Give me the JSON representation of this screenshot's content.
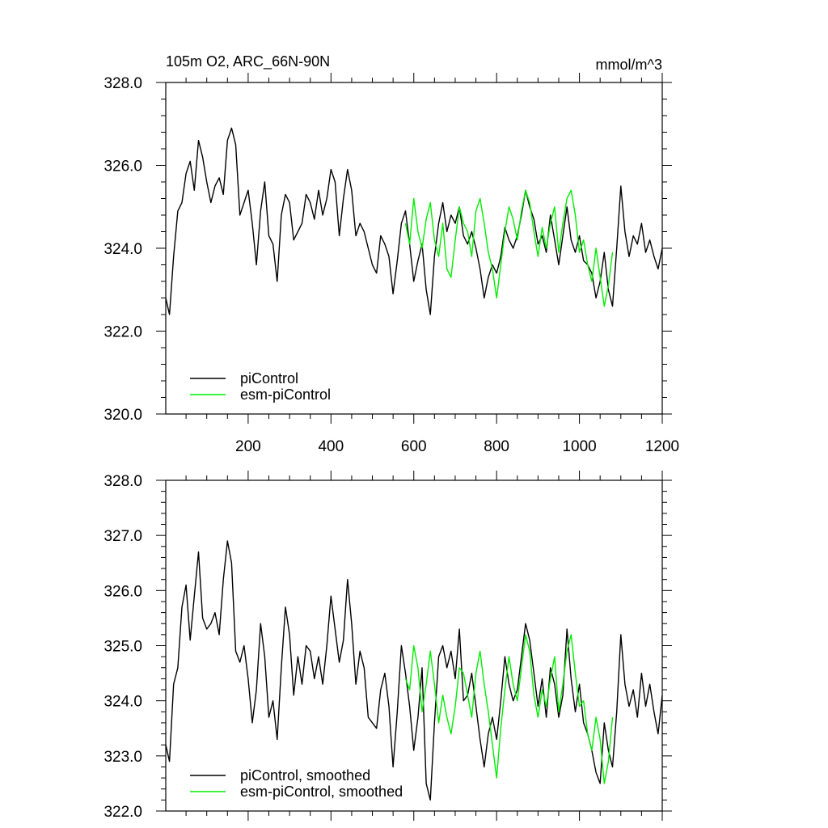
{
  "chart_data": [
    {
      "type": "line",
      "title": "105m O2, ARC_66N-90N",
      "units": "mmol/m^3",
      "xlim": [
        1,
        1200
      ],
      "ylim": [
        320,
        328
      ],
      "xticks": [
        200,
        400,
        600,
        800,
        1000,
        1200
      ],
      "xtick_labels": [
        "200",
        "400",
        "600",
        "800",
        "1000",
        "1200"
      ],
      "yticks": [
        320,
        322,
        324,
        326,
        328
      ],
      "ytick_labels": [
        "320.0",
        "322.0",
        "324.0",
        "326.0",
        "328.0"
      ],
      "legend_position": "bottom-left",
      "grid": false,
      "series": [
        {
          "name": "piControl",
          "color": "#000000",
          "x": [
            1,
            10,
            20,
            30,
            40,
            50,
            60,
            70,
            80,
            90,
            100,
            110,
            120,
            130,
            140,
            150,
            160,
            170,
            180,
            190,
            200,
            210,
            220,
            230,
            240,
            250,
            260,
            270,
            280,
            290,
            300,
            310,
            320,
            330,
            340,
            350,
            360,
            370,
            380,
            390,
            400,
            410,
            420,
            430,
            440,
            450,
            460,
            470,
            480,
            490,
            500,
            510,
            520,
            530,
            540,
            550,
            560,
            570,
            580,
            590,
            600,
            610,
            620,
            630,
            640,
            650,
            660,
            670,
            680,
            690,
            700,
            710,
            720,
            730,
            740,
            750,
            760,
            770,
            780,
            790,
            800,
            810,
            820,
            830,
            840,
            850,
            860,
            870,
            880,
            890,
            900,
            910,
            920,
            930,
            940,
            950,
            960,
            970,
            980,
            990,
            1000,
            1010,
            1020,
            1030,
            1040,
            1050,
            1060,
            1070,
            1080,
            1090,
            1100,
            1110,
            1120,
            1130,
            1140,
            1150,
            1160,
            1170,
            1180,
            1190,
            1200
          ],
          "values": [
            322.8,
            322.4,
            323.8,
            324.9,
            325.1,
            325.8,
            326.1,
            325.4,
            326.6,
            326.2,
            325.6,
            325.1,
            325.5,
            325.7,
            325.3,
            326.6,
            326.9,
            326.5,
            324.8,
            325.1,
            325.4,
            324.6,
            323.6,
            324.9,
            325.6,
            324.3,
            324.1,
            323.2,
            324.8,
            325.3,
            325.1,
            324.2,
            324.4,
            324.6,
            325.3,
            325.1,
            324.7,
            325.4,
            324.8,
            325.2,
            325.9,
            325.6,
            324.3,
            325.2,
            325.9,
            325.4,
            324.3,
            324.6,
            324.4,
            324.0,
            323.6,
            323.4,
            324.3,
            324.1,
            323.8,
            322.9,
            323.7,
            324.6,
            324.9,
            324.1,
            323.2,
            323.7,
            324.1,
            323.0,
            322.4,
            323.8,
            324.6,
            325.1,
            324.4,
            324.8,
            324.6,
            325.0,
            324.3,
            324.1,
            324.4,
            324.0,
            323.5,
            322.8,
            323.3,
            323.6,
            323.4,
            323.8,
            324.5,
            324.2,
            324.0,
            324.3,
            324.8,
            325.4,
            325.0,
            324.7,
            324.1,
            324.3,
            323.9,
            324.8,
            324.2,
            323.6,
            324.3,
            325.0,
            324.2,
            323.9,
            324.3,
            323.7,
            323.6,
            323.4,
            322.8,
            323.2,
            323.9,
            323.0,
            322.6,
            324.0,
            325.5,
            324.4,
            323.8,
            324.3,
            324.1,
            324.6,
            323.9,
            324.2,
            323.8,
            323.5,
            324.0
          ]
        },
        {
          "name": "esm-piControl",
          "color": "#00ee00",
          "x": [
            580,
            590,
            600,
            610,
            620,
            630,
            640,
            650,
            660,
            670,
            680,
            690,
            700,
            710,
            720,
            730,
            740,
            750,
            760,
            770,
            780,
            790,
            800,
            810,
            820,
            830,
            840,
            850,
            860,
            870,
            880,
            890,
            900,
            910,
            920,
            930,
            940,
            950,
            960,
            970,
            980,
            990,
            1000,
            1010,
            1020,
            1030,
            1040,
            1050,
            1060,
            1070,
            1080
          ],
          "values": [
            324.6,
            324.1,
            325.2,
            324.4,
            324.0,
            324.7,
            325.1,
            324.2,
            323.8,
            324.6,
            323.5,
            323.3,
            324.2,
            325.0,
            324.6,
            324.4,
            323.8,
            324.9,
            325.2,
            324.6,
            323.9,
            323.5,
            322.8,
            323.6,
            324.4,
            325.0,
            324.7,
            324.2,
            324.9,
            325.4,
            325.1,
            324.4,
            323.8,
            324.5,
            324.0,
            324.6,
            325.0,
            323.9,
            324.6,
            325.2,
            325.4,
            324.8,
            323.9,
            324.2,
            323.6,
            323.2,
            324.0,
            323.3,
            322.6,
            323.1,
            323.9
          ]
        }
      ]
    },
    {
      "type": "line",
      "xlim": [
        1,
        1200
      ],
      "ylim": [
        322,
        328
      ],
      "yticks": [
        322,
        323,
        324,
        325,
        326,
        327,
        328
      ],
      "ytick_labels": [
        "322.0",
        "323.0",
        "324.0",
        "325.0",
        "326.0",
        "327.0",
        "328.0"
      ],
      "legend_position": "bottom-left",
      "grid": false,
      "series": [
        {
          "name": "piControl, smoothed",
          "color": "#000000",
          "x": [
            1,
            10,
            20,
            30,
            40,
            50,
            60,
            70,
            80,
            90,
            100,
            110,
            120,
            130,
            140,
            150,
            160,
            170,
            180,
            190,
            200,
            210,
            220,
            230,
            240,
            250,
            260,
            270,
            280,
            290,
            300,
            310,
            320,
            330,
            340,
            350,
            360,
            370,
            380,
            390,
            400,
            410,
            420,
            430,
            440,
            450,
            460,
            470,
            480,
            490,
            500,
            510,
            520,
            530,
            540,
            550,
            560,
            570,
            580,
            590,
            600,
            610,
            620,
            630,
            640,
            650,
            660,
            670,
            680,
            690,
            700,
            710,
            720,
            730,
            740,
            750,
            760,
            770,
            780,
            790,
            800,
            810,
            820,
            830,
            840,
            850,
            860,
            870,
            880,
            890,
            900,
            910,
            920,
            930,
            940,
            950,
            960,
            970,
            980,
            990,
            1000,
            1010,
            1020,
            1030,
            1040,
            1050,
            1060,
            1070,
            1080,
            1090,
            1100,
            1110,
            1120,
            1130,
            1140,
            1150,
            1160,
            1170,
            1180,
            1190,
            1200
          ],
          "values": [
            323.2,
            322.9,
            324.3,
            324.6,
            325.7,
            326.1,
            325.1,
            325.9,
            326.7,
            325.5,
            325.3,
            325.4,
            325.6,
            325.2,
            326.2,
            326.9,
            326.5,
            324.9,
            324.7,
            325.0,
            324.4,
            323.6,
            324.2,
            325.4,
            324.8,
            323.7,
            324.0,
            323.3,
            324.6,
            325.7,
            325.2,
            324.1,
            324.8,
            324.3,
            325.0,
            324.9,
            324.4,
            324.8,
            324.3,
            325.0,
            325.9,
            325.3,
            324.7,
            325.1,
            326.2,
            325.4,
            324.3,
            324.9,
            324.6,
            323.7,
            323.6,
            323.5,
            324.2,
            324.5,
            323.9,
            322.8,
            323.8,
            325.0,
            324.5,
            323.9,
            323.1,
            323.7,
            324.6,
            322.5,
            322.2,
            323.6,
            324.8,
            325.0,
            324.6,
            324.9,
            324.4,
            325.3,
            324.0,
            324.1,
            324.5,
            323.9,
            323.3,
            322.8,
            323.4,
            323.7,
            323.3,
            324.0,
            324.8,
            324.3,
            324.0,
            324.2,
            324.8,
            325.4,
            325.1,
            324.5,
            323.9,
            324.4,
            323.7,
            324.6,
            324.3,
            323.7,
            324.1,
            325.3,
            324.4,
            323.8,
            324.3,
            323.6,
            323.4,
            323.1,
            322.7,
            322.5,
            323.6,
            323.1,
            322.8,
            323.8,
            325.2,
            324.3,
            323.9,
            324.2,
            323.7,
            324.5,
            323.9,
            324.3,
            323.8,
            323.4,
            324.1
          ]
        },
        {
          "name": "esm-piControl, smoothed",
          "color": "#00ee00",
          "x": [
            580,
            590,
            600,
            610,
            620,
            630,
            640,
            650,
            660,
            670,
            680,
            690,
            700,
            710,
            720,
            730,
            740,
            750,
            760,
            770,
            780,
            790,
            800,
            810,
            820,
            830,
            840,
            850,
            860,
            870,
            880,
            890,
            900,
            910,
            920,
            930,
            940,
            950,
            960,
            970,
            980,
            990,
            1000,
            1010,
            1020,
            1030,
            1040,
            1050,
            1060,
            1070,
            1080
          ],
          "values": [
            324.4,
            324.2,
            325.0,
            324.6,
            323.8,
            324.3,
            324.9,
            324.3,
            323.6,
            324.1,
            323.7,
            323.4,
            323.9,
            324.6,
            324.5,
            324.1,
            323.7,
            324.5,
            324.9,
            324.3,
            323.8,
            323.2,
            322.6,
            323.5,
            324.2,
            324.8,
            324.3,
            324.0,
            324.6,
            325.2,
            324.9,
            324.1,
            323.7,
            324.2,
            323.9,
            324.4,
            324.8,
            323.8,
            324.3,
            324.9,
            325.2,
            324.5,
            323.9,
            324.0,
            323.4,
            323.1,
            323.7,
            323.3,
            322.5,
            322.9,
            323.7
          ]
        }
      ]
    }
  ]
}
